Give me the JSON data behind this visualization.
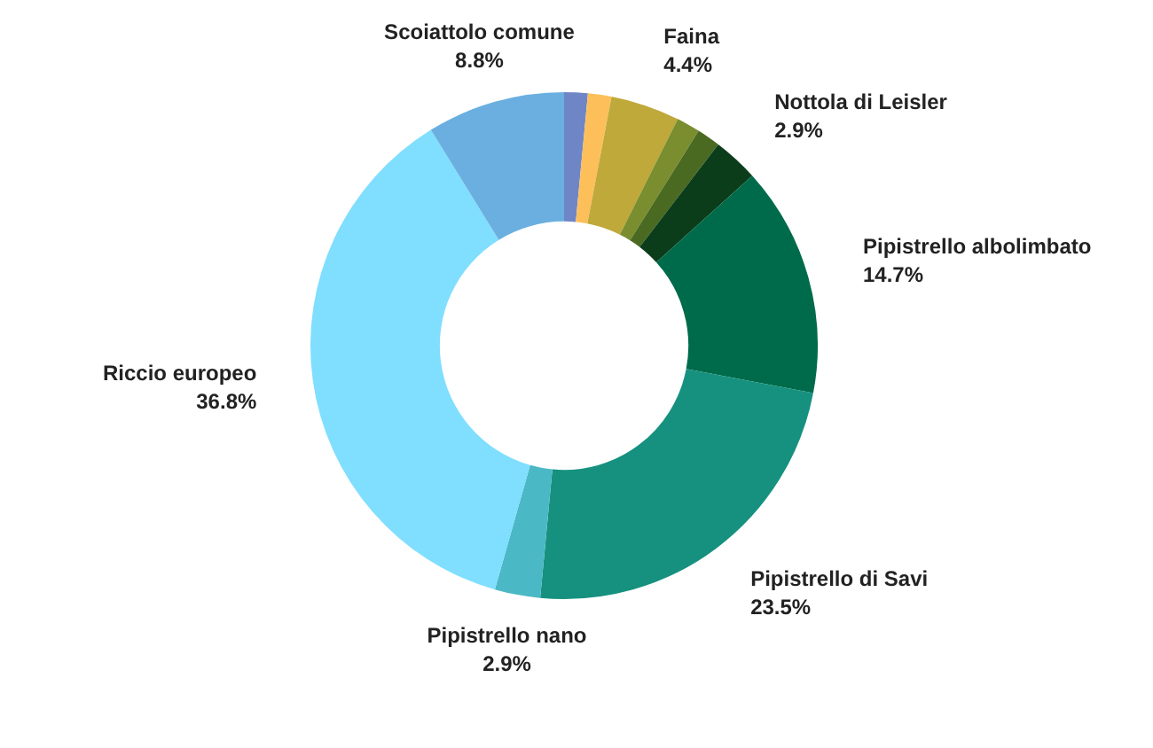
{
  "chart_data": {
    "type": "donut",
    "categories": [
      null,
      null,
      "Faina",
      null,
      null,
      "Nottola di Leisler",
      "Pipistrello albolimbato",
      "Pipistrello di Savi",
      "Pipistrello nano",
      "Riccio europeo",
      "Scoiattolo comune"
    ],
    "values": [
      1.5,
      1.5,
      4.4,
      1.5,
      1.5,
      2.9,
      14.7,
      23.5,
      2.9,
      36.8,
      8.8
    ],
    "value_labels": [
      null,
      null,
      "4.4%",
      null,
      null,
      "2.9%",
      "14.7%",
      "23.5%",
      "2.9%",
      "36.8%",
      "8.8%"
    ],
    "colors": [
      "#6f86c6",
      "#fdbf5a",
      "#bfa93a",
      "#7a8e30",
      "#4a6a22",
      "#0b3d1a",
      "#006b4a",
      "#16917f",
      "#4bb8c5",
      "#80deff",
      "#6aafe0"
    ],
    "legend": false
  }
}
